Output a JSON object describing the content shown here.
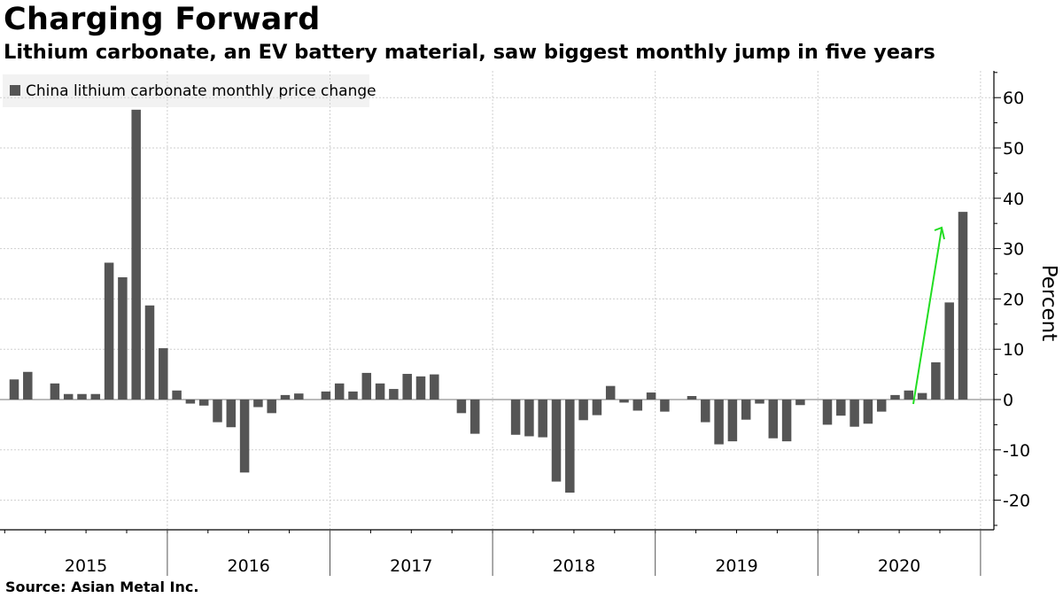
{
  "title": "Charging Forward",
  "subtitle": "Lithium carbonate, an EV battery material, saw biggest monthly jump in five years",
  "source": "Source: Asian Metal Inc.",
  "chart_data": {
    "type": "bar",
    "series": [
      {
        "name": "China lithium carbonate monthly price change",
        "color": "#555555",
        "values": [
          4,
          5.5,
          0,
          3.2,
          1.1,
          1.1,
          1.1,
          27.2,
          24.3,
          57.6,
          18.7,
          10.2,
          1.8,
          -0.8,
          -1.2,
          -4.5,
          -5.5,
          -14.5,
          -1.5,
          -2.7,
          0.9,
          1.2,
          0,
          1.6,
          3.2,
          1.6,
          5.3,
          3.2,
          2.1,
          5.1,
          4.6,
          5,
          0,
          -2.7,
          -6.8,
          0,
          0,
          -7,
          -7.3,
          -7.5,
          -16.3,
          -18.5,
          -4.1,
          -3.1,
          2.7,
          -0.6,
          -2.2,
          1.4,
          -2.4,
          0,
          0.7,
          -4.5,
          -8.9,
          -8.3,
          -4,
          -0.8,
          -7.7,
          -8.3,
          -1.1,
          0,
          -5,
          -3.2,
          -5.4,
          -4.8,
          -2.4,
          0.9,
          1.8,
          1.3,
          7.4,
          19.3,
          37.3
        ]
      }
    ],
    "x_start": "2015-01",
    "year_labels": [
      "2015",
      "2016",
      "2017",
      "2018",
      "2019",
      "2020"
    ],
    "ylabel": "Percent",
    "ylim": [
      -26,
      65
    ],
    "yticks": [
      60,
      50,
      40,
      30,
      20,
      10,
      0,
      -10,
      -20
    ],
    "legend": "China lithium carbonate monthly price change",
    "legend_position": "top-left",
    "grid": true,
    "annotation": "green arrow pointing up to latest bars",
    "annotation_color": "#22dd22"
  }
}
